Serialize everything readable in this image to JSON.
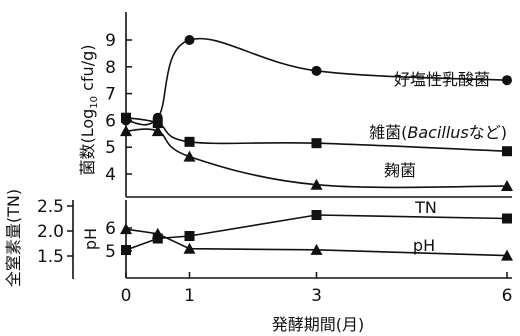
{
  "chart_data": [
    {
      "type": "line",
      "xlabel": "発酵期間(月)",
      "ylabel": "菌数(Log10 cfu/g)",
      "ylabel_main": "菌数(Log",
      "ylabel_sub": "10",
      "ylabel_rest": " cfu/g)",
      "ylim": [
        3.3,
        9.8
      ],
      "yticks": [
        "4",
        "5",
        "6",
        "7",
        "8",
        "9"
      ],
      "x": [
        0,
        0.5,
        1,
        3,
        6
      ],
      "xticks": [
        "0",
        "1",
        "3",
        "6"
      ],
      "series": [
        {
          "name": "好塩性乳酸菌",
          "marker": "circle",
          "values": [
            6.0,
            6.1,
            9.0,
            7.85,
            7.5
          ]
        },
        {
          "name": "雑菌(Bacillusなど)",
          "name_prefix": "雑菌(",
          "name_italic": "Bacillus",
          "name_suffix": "など)",
          "marker": "square",
          "values": [
            6.1,
            5.9,
            5.2,
            5.15,
            4.85
          ]
        },
        {
          "name": "麹菌",
          "marker": "triangle",
          "values": [
            5.6,
            5.6,
            4.65,
            3.6,
            3.55
          ]
        }
      ]
    },
    {
      "type": "line",
      "ylabel_left": "全窒素量(TN)",
      "ylabel_right": "pH",
      "yticks_left": [
        "1.5",
        "2.0",
        "2.5"
      ],
      "yticks_right": [
        "5",
        "6"
      ],
      "series": [
        {
          "name": "TN",
          "marker": "square",
          "axis": "left",
          "values": [
            1.62,
            1.85,
            1.9,
            2.32,
            2.25
          ]
        },
        {
          "name": "pH",
          "marker": "triangle",
          "axis": "right",
          "values": [
            5.95,
            5.75,
            5.1,
            5.05,
            4.8
          ]
        }
      ]
    }
  ]
}
